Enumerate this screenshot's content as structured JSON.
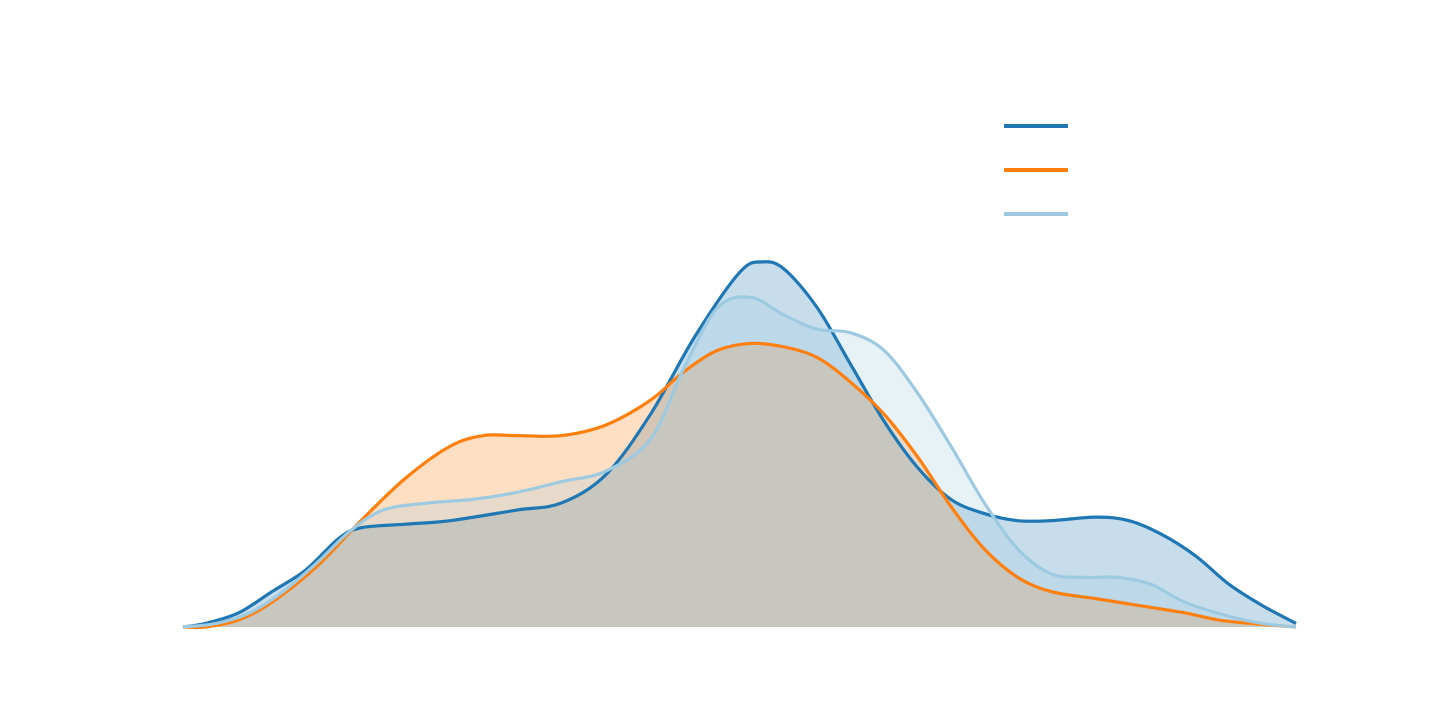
{
  "chart_data": {
    "type": "area",
    "title": "",
    "xlabel": "",
    "ylabel": "",
    "grid": false,
    "legend": {
      "placement": "top-right",
      "show_labels": false
    },
    "xlim": [
      0,
      100
    ],
    "ylim": [
      0,
      1.12
    ],
    "series": [
      {
        "color": "#1f77b4",
        "fill_opacity": 0.25,
        "points": [
          [
            0,
            0.0
          ],
          [
            2,
            0.01
          ],
          [
            5,
            0.04
          ],
          [
            8,
            0.1
          ],
          [
            11,
            0.16
          ],
          [
            14,
            0.25
          ],
          [
            16,
            0.28
          ],
          [
            20,
            0.29
          ],
          [
            24,
            0.3
          ],
          [
            30,
            0.33
          ],
          [
            34,
            0.35
          ],
          [
            38,
            0.43
          ],
          [
            42,
            0.6
          ],
          [
            46,
            0.82
          ],
          [
            50,
            1.0
          ],
          [
            52,
            1.03
          ],
          [
            54,
            1.01
          ],
          [
            57,
            0.9
          ],
          [
            60,
            0.74
          ],
          [
            63,
            0.58
          ],
          [
            66,
            0.45
          ],
          [
            69,
            0.36
          ],
          [
            72,
            0.32
          ],
          [
            75,
            0.3
          ],
          [
            78,
            0.3
          ],
          [
            82,
            0.31
          ],
          [
            85,
            0.3
          ],
          [
            88,
            0.26
          ],
          [
            91,
            0.2
          ],
          [
            94,
            0.12
          ],
          [
            97,
            0.06
          ],
          [
            100,
            0.01
          ]
        ]
      },
      {
        "color": "#ff7f0e",
        "fill_opacity": 0.25,
        "points": [
          [
            0,
            0.0
          ],
          [
            2,
            0.0
          ],
          [
            5,
            0.02
          ],
          [
            8,
            0.07
          ],
          [
            12,
            0.17
          ],
          [
            16,
            0.3
          ],
          [
            20,
            0.42
          ],
          [
            24,
            0.51
          ],
          [
            27,
            0.54
          ],
          [
            30,
            0.54
          ],
          [
            34,
            0.54
          ],
          [
            38,
            0.57
          ],
          [
            42,
            0.64
          ],
          [
            45,
            0.72
          ],
          [
            48,
            0.78
          ],
          [
            51,
            0.8
          ],
          [
            54,
            0.79
          ],
          [
            57,
            0.76
          ],
          [
            60,
            0.69
          ],
          [
            63,
            0.6
          ],
          [
            66,
            0.48
          ],
          [
            69,
            0.34
          ],
          [
            72,
            0.22
          ],
          [
            75,
            0.14
          ],
          [
            78,
            0.1
          ],
          [
            82,
            0.08
          ],
          [
            86,
            0.06
          ],
          [
            90,
            0.04
          ],
          [
            93,
            0.02
          ],
          [
            96,
            0.01
          ],
          [
            100,
            0.0
          ]
        ]
      },
      {
        "color": "#9ecae1",
        "fill_opacity": 0.25,
        "points": [
          [
            0,
            0.0
          ],
          [
            3,
            0.01
          ],
          [
            6,
            0.04
          ],
          [
            9,
            0.1
          ],
          [
            12,
            0.18
          ],
          [
            15,
            0.27
          ],
          [
            18,
            0.33
          ],
          [
            22,
            0.35
          ],
          [
            26,
            0.36
          ],
          [
            30,
            0.38
          ],
          [
            34,
            0.41
          ],
          [
            38,
            0.44
          ],
          [
            42,
            0.53
          ],
          [
            45,
            0.73
          ],
          [
            48,
            0.9
          ],
          [
            51,
            0.93
          ],
          [
            54,
            0.88
          ],
          [
            57,
            0.84
          ],
          [
            60,
            0.83
          ],
          [
            63,
            0.78
          ],
          [
            66,
            0.66
          ],
          [
            69,
            0.51
          ],
          [
            72,
            0.35
          ],
          [
            75,
            0.22
          ],
          [
            78,
            0.15
          ],
          [
            81,
            0.14
          ],
          [
            84,
            0.14
          ],
          [
            87,
            0.12
          ],
          [
            90,
            0.07
          ],
          [
            94,
            0.03
          ],
          [
            97,
            0.01
          ],
          [
            100,
            0.0
          ]
        ]
      }
    ]
  }
}
